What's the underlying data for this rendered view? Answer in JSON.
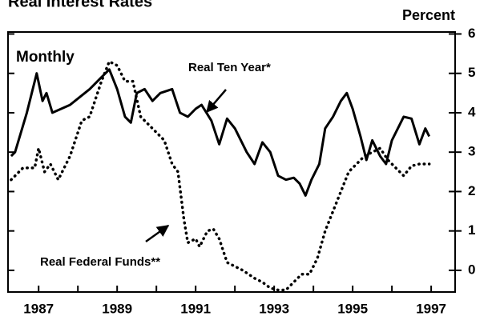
{
  "chart_data": {
    "type": "line",
    "title": "Real Interest Rates",
    "y_axis_label": "Percent",
    "annotations": [
      "Monthly",
      "Real Ten Year*",
      "Real Federal Funds**"
    ],
    "xlim": [
      1986.22,
      1997.61
    ],
    "xticks": [
      1987,
      1988,
      1989,
      1990,
      1991,
      1992,
      1993,
      1994,
      1995,
      1996,
      1997
    ],
    "xtick_labels": [
      "1987",
      null,
      "1989",
      null,
      "1991",
      null,
      "1993",
      null,
      "1995",
      null,
      "1997"
    ],
    "ylim": [
      -0.55,
      6.05
    ],
    "yticks": [
      0,
      1,
      2,
      3,
      4,
      5,
      6
    ],
    "grid": false,
    "series": [
      {
        "name": "Real Ten Year*",
        "color": "#000000",
        "dash": false,
        "x": [
          1986.3,
          1986.4,
          1986.7,
          1986.95,
          1987.1,
          1987.2,
          1987.35,
          1987.8,
          1988.3,
          1988.6,
          1988.8,
          1989.0,
          1989.2,
          1989.35,
          1989.5,
          1989.7,
          1989.9,
          1990.1,
          1990.4,
          1990.6,
          1990.8,
          1991.0,
          1991.15,
          1991.4,
          1991.6,
          1991.8,
          1992.0,
          1992.3,
          1992.5,
          1992.7,
          1992.9,
          1993.1,
          1993.3,
          1993.5,
          1993.65,
          1993.8,
          1993.95,
          1994.15,
          1994.3,
          1994.5,
          1994.7,
          1994.85,
          1995.0,
          1995.2,
          1995.35,
          1995.5,
          1995.7,
          1995.85,
          1996.0,
          1996.3,
          1996.5,
          1996.7,
          1996.85,
          1996.95
        ],
        "values": [
          2.9,
          3.0,
          4.0,
          5.0,
          4.3,
          4.5,
          4.0,
          4.2,
          4.6,
          4.9,
          5.1,
          4.6,
          3.9,
          3.75,
          4.5,
          4.6,
          4.3,
          4.5,
          4.6,
          4.0,
          3.9,
          4.1,
          4.2,
          3.8,
          3.2,
          3.85,
          3.6,
          3.0,
          2.7,
          3.25,
          3.0,
          2.4,
          2.3,
          2.35,
          2.2,
          1.9,
          2.3,
          2.7,
          3.6,
          3.9,
          4.3,
          4.5,
          4.1,
          3.4,
          2.8,
          3.3,
          2.9,
          2.7,
          3.3,
          3.9,
          3.85,
          3.2,
          3.6,
          3.4
        ]
      },
      {
        "name": "Real Federal Funds**",
        "color": "#000000",
        "dash": true,
        "x": [
          1986.3,
          1986.6,
          1986.9,
          1987.0,
          1987.15,
          1987.3,
          1987.5,
          1987.8,
          1988.1,
          1988.3,
          1988.6,
          1988.8,
          1989.0,
          1989.2,
          1989.4,
          1989.6,
          1989.8,
          1990.0,
          1990.2,
          1990.4,
          1990.55,
          1990.7,
          1990.8,
          1991.0,
          1991.1,
          1991.3,
          1991.45,
          1991.6,
          1991.8,
          1992.0,
          1992.2,
          1992.5,
          1992.7,
          1992.9,
          1993.1,
          1993.3,
          1993.5,
          1993.7,
          1993.9,
          1994.1,
          1994.3,
          1994.5,
          1994.7,
          1994.9,
          1995.1,
          1995.3,
          1995.5,
          1995.7,
          1995.9,
          1996.1,
          1996.3,
          1996.5,
          1996.7,
          1996.95
        ],
        "values": [
          2.3,
          2.6,
          2.6,
          3.1,
          2.5,
          2.7,
          2.3,
          2.9,
          3.8,
          3.9,
          4.8,
          5.3,
          5.2,
          4.8,
          4.8,
          3.9,
          3.7,
          3.5,
          3.3,
          2.7,
          2.5,
          1.3,
          0.7,
          0.8,
          0.6,
          1.0,
          1.05,
          0.8,
          0.2,
          0.1,
          0.0,
          -0.2,
          -0.3,
          -0.45,
          -0.5,
          -0.5,
          -0.3,
          -0.1,
          -0.1,
          0.3,
          1.0,
          1.5,
          2.0,
          2.5,
          2.7,
          2.9,
          3.0,
          3.1,
          2.8,
          2.6,
          2.4,
          2.65,
          2.7,
          2.7
        ]
      }
    ]
  }
}
